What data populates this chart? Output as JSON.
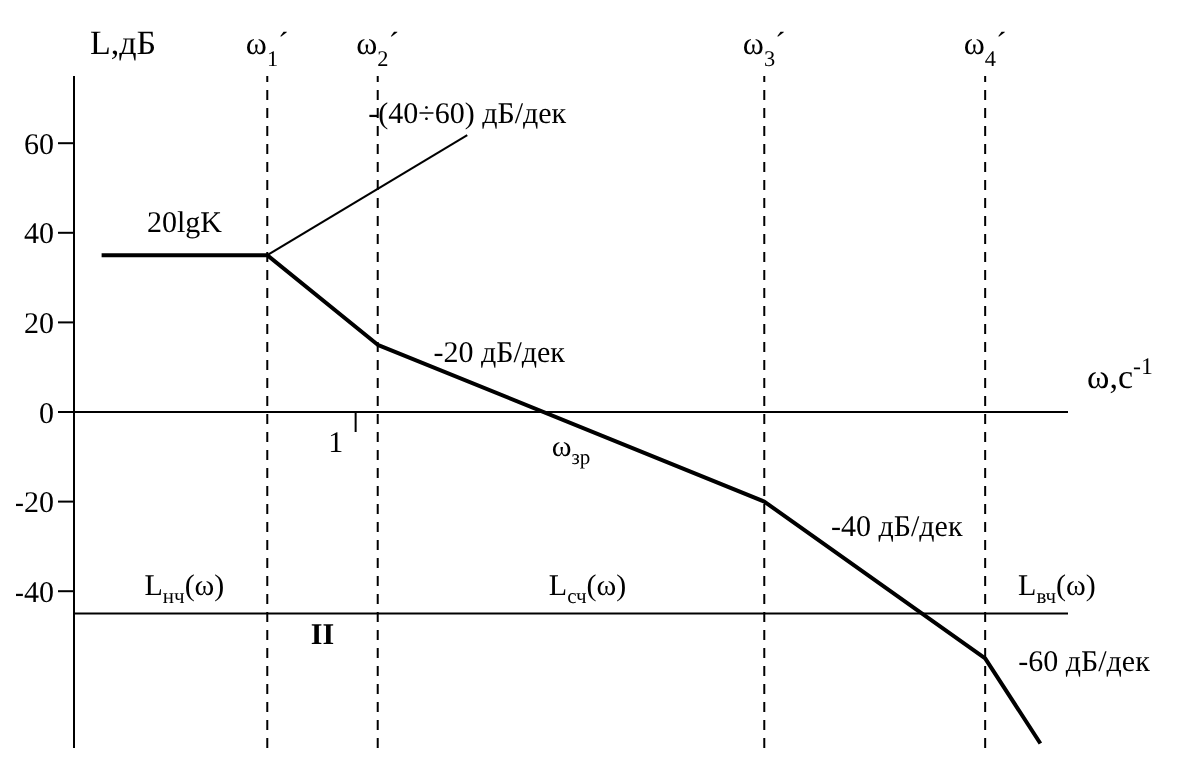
{
  "chart_data": {
    "type": "line",
    "ylabel": "L,дБ",
    "xlabel": "ω,с$^{-1}$",
    "categories": [
      null,
      null,
      null,
      "ω$_{1}$´",
      null,
      "ω$_{2}$´",
      null,
      null,
      null,
      null,
      null,
      null,
      "ω$_{3}$´",
      null,
      null,
      null,
      "ω$_{4}$´",
      null
    ],
    "series": [
      {
        "color": "#000000",
        "values": [
          35,
          null,
          null,
          35,
          null,
          15,
          null,
          null,
          null,
          null,
          null,
          null,
          -20,
          null,
          null,
          null,
          -55,
          -74
        ]
      }
    ],
    "ylim": [
      -75,
      75
    ],
    "yticks": [
      -40,
      -20,
      0,
      20,
      40,
      60
    ],
    "ref_lines": [
      {
        "axis": "x",
        "value": "ω$_{1}$´",
        "line_style": "dashed",
        "color": "#000000"
      },
      {
        "axis": "x",
        "value": "ω$_{2}$´",
        "line_style": "dashed",
        "color": "#000000"
      },
      {
        "axis": "x",
        "value": "ω$_{3}$´",
        "line_style": "dashed",
        "color": "#000000"
      },
      {
        "axis": "x",
        "value": "ω$_{4}$´",
        "line_style": "dashed",
        "color": "#000000"
      },
      {
        "axis": "y",
        "value": 0,
        "line_style": "solid",
        "color": "#000000"
      },
      {
        "axis": "y",
        "value": -45,
        "line_style": "solid",
        "color": "#000000"
      }
    ],
    "annotations": [
      "20lgK",
      {
        "text": "-(40÷60) дБ/дек",
        "x": "ω$_{1}$´",
        "y": 35
      },
      "-20 дБ/дек",
      "-40 дБ/дек",
      "-60 дБ/дек",
      "ω$_{зр}$",
      "L$_{нч}$(ω)",
      "II",
      "L$_{сч}$(ω)",
      "L$_{вч}$(ω)",
      "1"
    ],
    "marker": "none",
    "line_style": "solid"
  }
}
